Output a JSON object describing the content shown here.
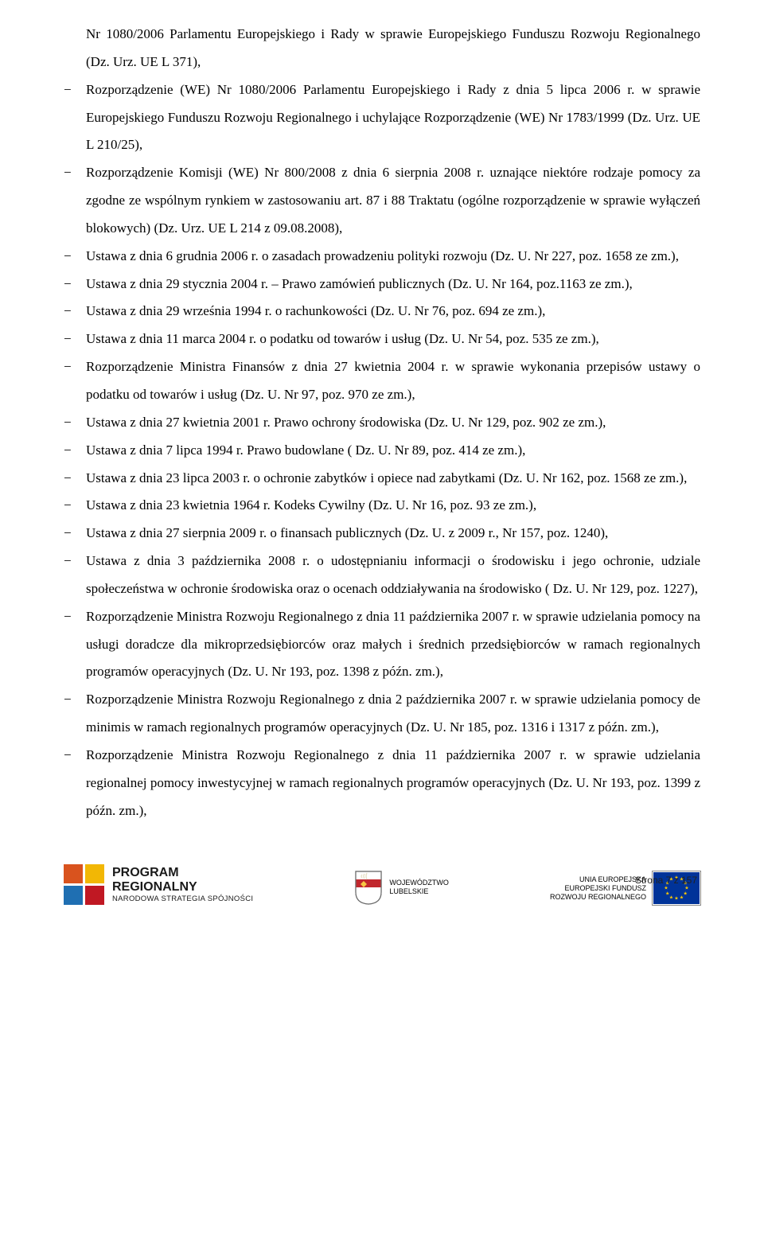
{
  "paragraphs": [
    {
      "cls": "continuation",
      "text": "Nr 1080/2006 Parlamentu Europejskiego i Rady w sprawie Europejskiego Funduszu Rozwoju Regionalnego (Dz. Urz. UE L 371),"
    },
    {
      "cls": "list-item",
      "text": "Rozporządzenie (WE) Nr 1080/2006 Parlamentu Europejskiego i Rady z dnia 5 lipca 2006 r. w sprawie Europejskiego Funduszu Rozwoju Regionalnego i uchylające Rozporządzenie (WE) Nr 1783/1999 (Dz. Urz. UE L 210/25),"
    },
    {
      "cls": "list-item",
      "text": "Rozporządzenie Komisji (WE) Nr 800/2008 z dnia 6 sierpnia 2008 r. uznające niektóre rodzaje pomocy za zgodne ze wspólnym rynkiem w zastosowaniu art. 87 i 88 Traktatu (ogólne rozporządzenie w sprawie wyłączeń blokowych) (Dz. Urz. UE L 214 z 09.08.2008),"
    },
    {
      "cls": "list-item",
      "text": "Ustawa z dnia 6 grudnia 2006 r. o zasadach prowadzeniu polityki rozwoju (Dz. U. Nr 227, poz. 1658 ze zm.),"
    },
    {
      "cls": "list-item",
      "text": "Ustawa z dnia 29 stycznia 2004 r. – Prawo zamówień publicznych (Dz. U. Nr 164, poz.1163 ze zm.),"
    },
    {
      "cls": "list-item",
      "text": "Ustawa z dnia 29 września 1994 r. o rachunkowości (Dz. U. Nr 76, poz. 694 ze zm.),"
    },
    {
      "cls": "list-item",
      "text": "Ustawa z dnia 11 marca 2004 r. o podatku od towarów i usług (Dz. U. Nr 54, poz. 535 ze zm.),"
    },
    {
      "cls": "list-item",
      "text": "Rozporządzenie Ministra Finansów z dnia 27 kwietnia 2004 r. w sprawie wykonania przepisów ustawy o podatku od towarów i usług (Dz. U. Nr 97, poz. 970 ze zm.),"
    },
    {
      "cls": "list-item",
      "text": "Ustawa z dnia 27 kwietnia 2001 r. Prawo ochrony środowiska (Dz. U. Nr 129, poz. 902 ze zm.),"
    },
    {
      "cls": "list-item",
      "text": "Ustawa z dnia 7 lipca 1994 r. Prawo budowlane ( Dz. U. Nr 89, poz. 414 ze zm.),"
    },
    {
      "cls": "list-item",
      "text": "Ustawa z dnia 23 lipca 2003 r. o ochronie zabytków i opiece nad zabytkami (Dz. U. Nr 162, poz. 1568 ze zm.),"
    },
    {
      "cls": "list-item",
      "text": "Ustawa z dnia 23 kwietnia 1964 r. Kodeks Cywilny (Dz. U. Nr 16, poz. 93 ze zm.),"
    },
    {
      "cls": "list-item",
      "text": " Ustawa z dnia 27 sierpnia 2009 r. o finansach publicznych (Dz. U. z 2009 r., Nr 157, poz. 1240),"
    },
    {
      "cls": "list-item",
      "text": "Ustawa z dnia 3 października 2008 r. o udostępnianiu informacji o środowisku i jego ochronie, udziale społeczeństwa w ochronie środowiska oraz o ocenach oddziaływania na środowisko ( Dz. U. Nr  129, poz. 1227),"
    },
    {
      "cls": "list-item",
      "text": "Rozporządzenie Ministra Rozwoju Regionalnego z dnia 11 października 2007 r. w sprawie udzielania pomocy na usługi doradcze dla mikroprzedsiębiorców oraz małych i średnich przedsiębiorców w ramach regionalnych programów operacyjnych (Dz. U. Nr 193, poz. 1398 z późn. zm.),"
    },
    {
      "cls": "list-item",
      "text": "Rozporządzenie Ministra Rozwoju Regionalnego z dnia 2 października 2007 r. w sprawie udzielania pomocy de minimis w ramach regionalnych programów operacyjnych (Dz. U. Nr 185, poz. 1316 i 1317 z późn. zm.),"
    },
    {
      "cls": "list-item",
      "text": "Rozporządzenie Ministra Rozwoju Regionalnego z dnia 11 października 2007 r. w sprawie udzielania regionalnej pomocy inwestycyjnej w ramach regionalnych programów operacyjnych (Dz. U. Nr 193, poz. 1399 z późn. zm.),"
    }
  ],
  "footer": {
    "left": {
      "line1": "PROGRAM",
      "line2": "REGIONALNY",
      "line3": "NARODOWA STRATEGIA SPÓJNOŚCI",
      "colors": {
        "tl": "#d9531e",
        "tr": "#f2b705",
        "bl": "#1f6fb2",
        "br": "#c01823"
      }
    },
    "center": {
      "line1": "WOJEWÓDZTWO",
      "line2": "LUBELSKIE",
      "shield": {
        "bg": "#ffffff",
        "border": "#6b6b6b",
        "red": "#c1272d",
        "yellow": "#f7c843",
        "antler": "#e8e1c8"
      }
    },
    "right": {
      "line1": "UNIA EUROPEJSKA",
      "line2": "EUROPEJSKI FUNDUSZ",
      "line3": "ROZWOJU REGIONALNEGO",
      "flag": {
        "bg": "#003399",
        "star": "#ffcc00"
      }
    },
    "page_num": "Strona 7 z 157"
  }
}
